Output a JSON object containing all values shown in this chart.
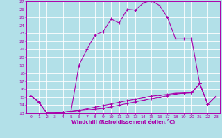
{
  "xlabel": "Windchill (Refroidissement éolien,°C)",
  "xlim": [
    -0.5,
    23.5
  ],
  "ylim": [
    13,
    27
  ],
  "xticks": [
    0,
    1,
    2,
    3,
    4,
    5,
    6,
    7,
    8,
    9,
    10,
    11,
    12,
    13,
    14,
    15,
    16,
    17,
    18,
    19,
    20,
    21,
    22,
    23
  ],
  "yticks": [
    13,
    14,
    15,
    16,
    17,
    18,
    19,
    20,
    21,
    22,
    23,
    24,
    25,
    26,
    27
  ],
  "bg_color": "#b2e0e8",
  "line_color": "#aa00aa",
  "grid_color": "#ffffff",
  "line1_x": [
    0,
    1,
    2,
    3,
    4,
    5,
    6,
    7,
    8,
    9,
    10,
    11,
    12,
    13,
    14,
    15,
    16,
    17,
    18,
    19,
    20,
    21,
    22,
    23
  ],
  "line1_y": [
    15.2,
    14.4,
    13.0,
    13.0,
    13.1,
    13.2,
    19.0,
    21.0,
    22.8,
    23.2,
    24.8,
    24.3,
    26.0,
    25.9,
    26.8,
    27.1,
    26.5,
    25.0,
    22.3,
    22.3,
    22.3,
    16.7,
    14.1,
    15.1
  ],
  "line2_x": [
    0,
    1,
    2,
    3,
    4,
    5,
    6,
    7,
    8,
    9,
    10,
    11,
    12,
    13,
    14,
    15,
    16,
    17,
    18,
    19,
    20,
    21,
    22,
    23
  ],
  "line2_y": [
    15.2,
    14.4,
    13.0,
    13.0,
    13.1,
    13.2,
    13.3,
    13.4,
    13.5,
    13.6,
    13.8,
    14.0,
    14.2,
    14.4,
    14.6,
    14.8,
    15.0,
    15.2,
    15.4,
    15.5,
    15.55,
    16.7,
    14.1,
    15.1
  ],
  "line3_x": [
    0,
    1,
    2,
    3,
    4,
    5,
    6,
    7,
    8,
    9,
    10,
    11,
    12,
    13,
    14,
    15,
    16,
    17,
    18,
    19,
    20,
    21,
    22,
    23
  ],
  "line3_y": [
    15.2,
    14.4,
    13.0,
    13.0,
    13.1,
    13.2,
    13.35,
    13.55,
    13.75,
    13.95,
    14.15,
    14.35,
    14.55,
    14.75,
    14.95,
    15.15,
    15.25,
    15.35,
    15.5,
    15.52,
    15.55,
    16.7,
    14.1,
    15.1
  ]
}
